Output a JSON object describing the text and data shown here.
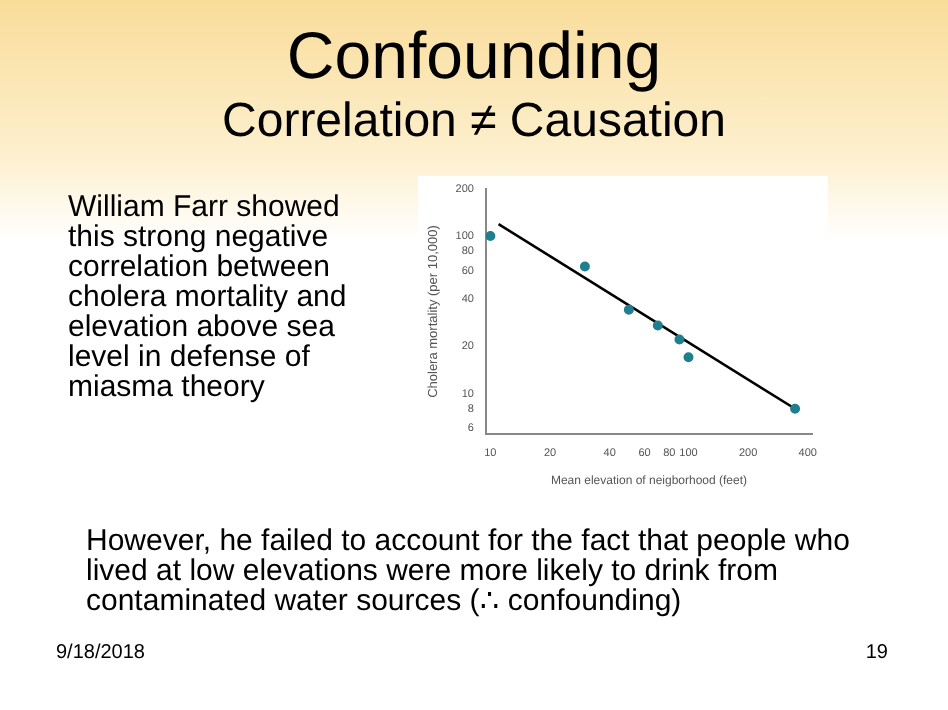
{
  "chart_data": {
    "type": "scatter",
    "title": "Confounding",
    "subtitle": "Correlation ≠ Causation",
    "xlabel": "Mean elevation of neigborhood (feet)",
    "ylabel": "Cholera mortality (per 10,000)",
    "annotations": [
      "William Farr showed this strong negative correlation between cholera mortality and elevation above sea level in defense of miasma theory",
      "However, he failed to account for the fact that people who lived at low elevations were more likely to drink from contaminated water sources (∴ confounding)",
      "9/18/2018",
      "19"
    ],
    "series": [
      {
        "marker": "circle",
        "color": "#1f7f8f",
        "x": [
          10,
          30,
          50,
          70,
          90,
          100,
          345
        ],
        "values": [
          100,
          64,
          34,
          27,
          22,
          17,
          8
        ]
      },
      {
        "type": "line",
        "marker": "none",
        "color": "#000000",
        "x": [
          11,
          345
        ],
        "values": [
          119,
          8
        ]
      }
    ],
    "xlim": [
      9.5,
      420
    ],
    "ylim": [
      5.5,
      200
    ],
    "xticks": [
      10,
      20,
      40,
      60,
      80,
      100,
      200,
      400
    ],
    "yticks": [
      6,
      8,
      10,
      20,
      40,
      60,
      80,
      100,
      200
    ],
    "log": "xy",
    "grid": false,
    "legend": false
  }
}
